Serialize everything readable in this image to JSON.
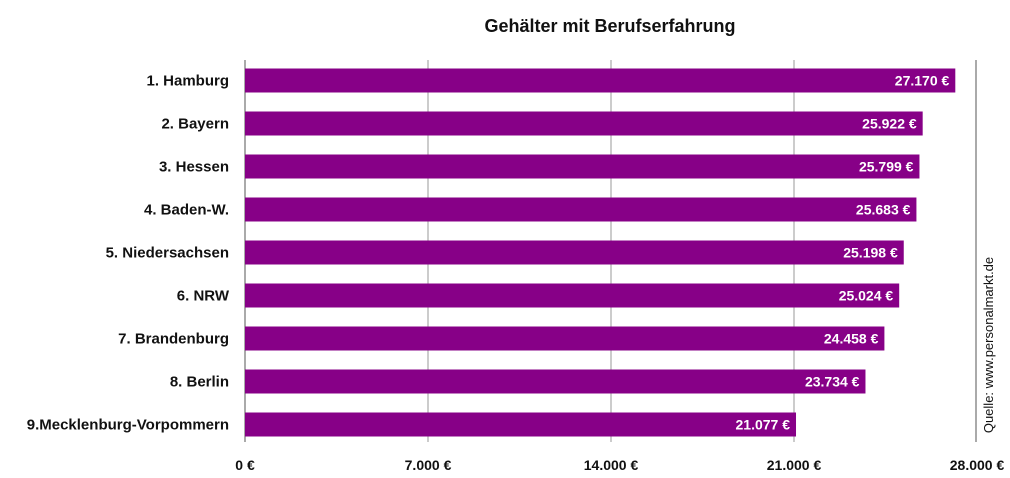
{
  "chart_data": {
    "type": "bar",
    "orientation": "horizontal",
    "title": "Gehälter mit Berufserfahrung",
    "categories": [
      "1. Hamburg",
      "2. Bayern",
      "3. Hessen",
      "4. Baden-W.",
      "5. Niedersachsen",
      "6. NRW",
      "7. Brandenburg",
      "8. Berlin",
      "9.Mecklenburg-Vorpommern"
    ],
    "values": [
      27170,
      25922,
      25799,
      25683,
      25198,
      25024,
      24458,
      23734,
      21077
    ],
    "value_labels": [
      "27.170 €",
      "25.922 €",
      "25.799 €",
      "25.683 €",
      "25.198 €",
      "25.024 €",
      "24.458 €",
      "23.734 €",
      "21.077 €"
    ],
    "xlim": [
      0,
      28000
    ],
    "xticks": [
      0,
      7000,
      14000,
      21000,
      28000
    ],
    "xtick_labels": [
      "0 €",
      "7.000 €",
      "14.000 €",
      "21.000 €",
      "28.000 €"
    ],
    "xlabel": "",
    "ylabel": "",
    "grid": "vertical",
    "bar_color": "#870087",
    "source_note": "Quelle: www.personalmarkt.de"
  }
}
